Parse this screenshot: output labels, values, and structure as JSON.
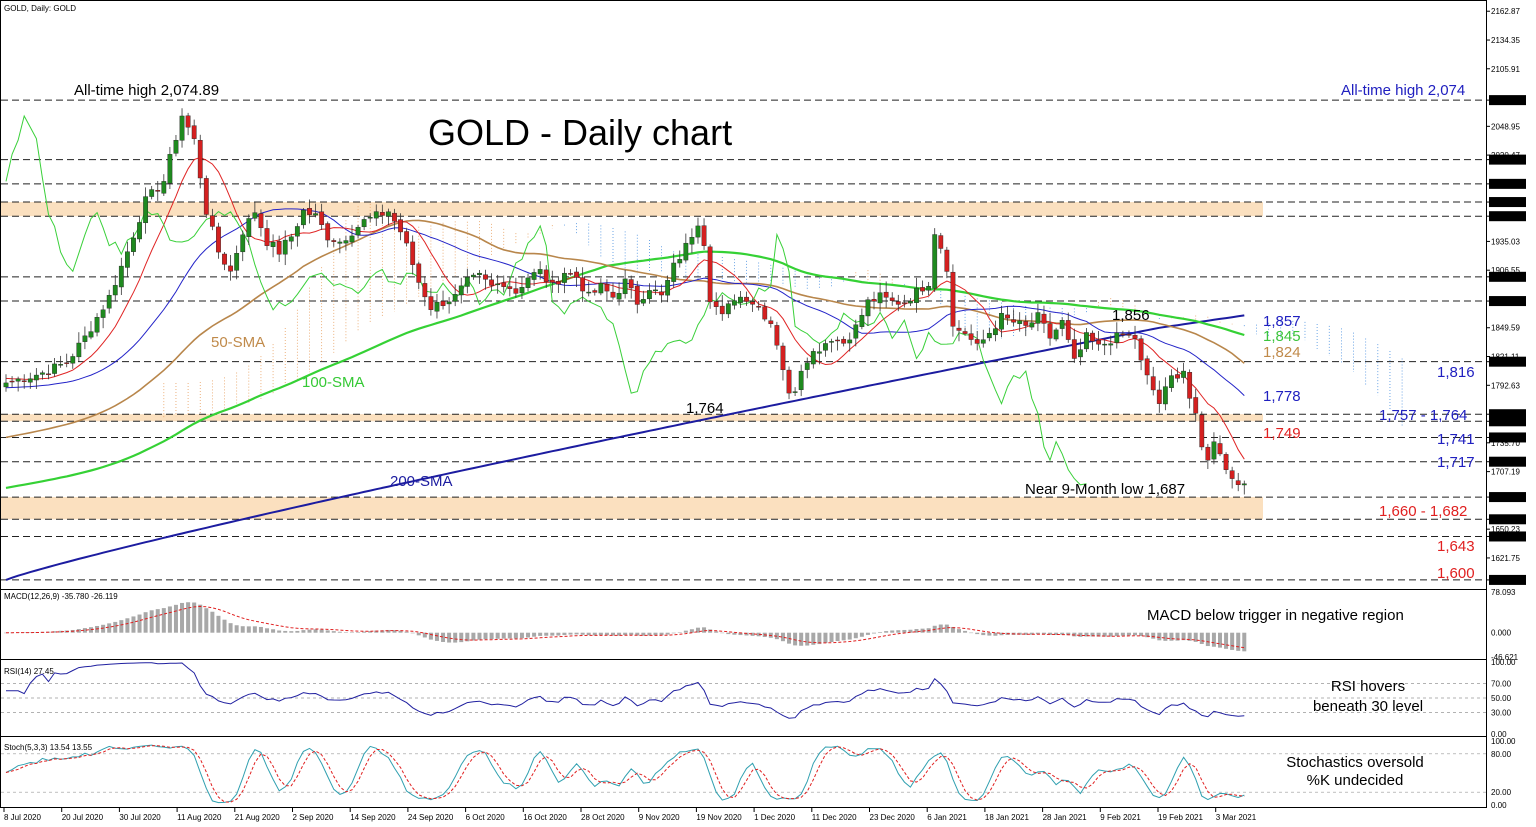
{
  "header": {
    "symbol_line": "GOLD, Daily: GOLD",
    "chart_title": "GOLD - Daily chart"
  },
  "colors": {
    "up_candle": "#1f8a1f",
    "down_candle": "#d42020",
    "sma50": "#b8864b",
    "sma100": "#35d135",
    "sma200": "#1c1ca0",
    "kijun": "#2323c8",
    "tenkan": "#e02424",
    "chikou": "#3ad03a",
    "zone_fill": "#fbe0bf",
    "blue_label": "#2020c0",
    "red_label": "#e02020",
    "green_label": "#3cc43c",
    "brown_label": "#c08a4a"
  },
  "chart_data": [
    {
      "type": "line",
      "name": "price-panel",
      "title": "GOLD - Daily chart",
      "ylim": [
        1592,
        2172
      ],
      "y_ticks": [
        2162.87,
        2134.35,
        2105.91,
        2074.89,
        2048.95,
        2020.47,
        2016.0,
        1992.0,
        1974.0,
        1960.0,
        1935.03,
        1906.55,
        1900.0,
        1876.0,
        1849.59,
        1821.11,
        1816.0,
        1792.63,
        1764.0,
        1757.0,
        1741.0,
        1735.7,
        1717.0,
        1707.19,
        1682.0,
        1660.0,
        1650.23,
        1643.0,
        1621.75,
        1600.0
      ],
      "y_tick_labels": [
        "2162.87",
        "2134.35",
        "2105.91",
        "2074.89",
        "2048.95",
        "2020.47",
        "2016.00",
        "1992.00",
        "1974.00",
        "1960.00",
        "1935.03",
        "1906.55",
        "1900.00",
        "1876.00",
        "1849.59",
        "1821.11",
        "1816.00",
        "1792.63",
        "1764.00",
        "1757.00",
        "1741.00",
        "1735.70",
        "1717.00",
        "1707.19",
        "1682.00",
        "1660.00",
        "1650.23",
        "1643.00",
        "1621.75",
        "1600.00"
      ],
      "highlighted_ticks": [
        "2074.89",
        "2016.00",
        "1992.00",
        "1974.00",
        "1960.00",
        "1900.00",
        "1876.00",
        "1816.00",
        "1764.00",
        "1757.00",
        "1741.00",
        "1717.00",
        "1682.00",
        "1660.00",
        "1643.00",
        "1600.00"
      ],
      "x_tick_labels": [
        "8 Jul 2020",
        "20 Jul 2020",
        "30 Jul 2020",
        "11 Aug 2020",
        "21 Aug 2020",
        "2 Sep 2020",
        "14 Sep 2020",
        "24 Sep 2020",
        "6 Oct 2020",
        "16 Oct 2020",
        "28 Oct 2020",
        "9 Nov 2020",
        "19 Nov 2020",
        "1 Dec 2020",
        "11 Dec 2020",
        "23 Dec 2020",
        "6 Jan 2021",
        "18 Jan 2021",
        "28 Jan 2021",
        "9 Feb 2021",
        "19 Feb 2021",
        "3 Mar 2021"
      ],
      "horizontal_levels": [
        2074.89,
        2016,
        1992,
        1974,
        1960,
        1900,
        1876,
        1816,
        1764,
        1757,
        1741,
        1717,
        1682,
        1660,
        1643,
        1600
      ],
      "zones": [
        [
          1960,
          1974
        ],
        [
          1757,
          1764
        ],
        [
          1660,
          1682
        ]
      ],
      "close_anchors": [
        [
          0,
          1795
        ],
        [
          6,
          1805
        ],
        [
          10,
          1815
        ],
        [
          13,
          1840
        ],
        [
          17,
          1880
        ],
        [
          20,
          1925
        ],
        [
          23,
          1975
        ],
        [
          26,
          1995
        ],
        [
          29,
          2060
        ],
        [
          31,
          2035
        ],
        [
          33,
          1965
        ],
        [
          35,
          1925
        ],
        [
          37,
          1905
        ],
        [
          39,
          1945
        ],
        [
          41,
          1965
        ],
        [
          43,
          1935
        ],
        [
          45,
          1925
        ],
        [
          47,
          1940
        ],
        [
          49,
          1965
        ],
        [
          51,
          1960
        ],
        [
          53,
          1940
        ],
        [
          55,
          1935
        ],
        [
          57,
          1945
        ],
        [
          59,
          1955
        ],
        [
          61,
          1960
        ],
        [
          63,
          1965
        ],
        [
          64,
          1955
        ],
        [
          65,
          1945
        ],
        [
          66,
          1930
        ],
        [
          68,
          1895
        ],
        [
          70,
          1870
        ],
        [
          72,
          1875
        ],
        [
          74,
          1880
        ],
        [
          76,
          1895
        ],
        [
          78,
          1900
        ],
        [
          80,
          1890
        ],
        [
          82,
          1895
        ],
        [
          84,
          1885
        ],
        [
          86,
          1900
        ],
        [
          88,
          1905
        ],
        [
          90,
          1890
        ],
        [
          92,
          1905
        ],
        [
          94,
          1900
        ],
        [
          96,
          1880
        ],
        [
          98,
          1890
        ],
        [
          100,
          1880
        ],
        [
          102,
          1895
        ],
        [
          104,
          1875
        ],
        [
          106,
          1890
        ],
        [
          108,
          1880
        ],
        [
          110,
          1910
        ],
        [
          112,
          1930
        ],
        [
          114,
          1955
        ],
        [
          115,
          1935
        ],
        [
          116,
          1880
        ],
        [
          118,
          1860
        ],
        [
          120,
          1880
        ],
        [
          122,
          1880
        ],
        [
          124,
          1870
        ],
        [
          126,
          1855
        ],
        [
          127,
          1835
        ],
        [
          128,
          1810
        ],
        [
          129,
          1782
        ],
        [
          130,
          1790
        ],
        [
          131,
          1810
        ],
        [
          132,
          1820
        ],
        [
          134,
          1830
        ],
        [
          136,
          1840
        ],
        [
          138,
          1835
        ],
        [
          140,
          1850
        ],
        [
          142,
          1875
        ],
        [
          144,
          1880
        ],
        [
          146,
          1875
        ],
        [
          148,
          1875
        ],
        [
          150,
          1885
        ],
        [
          152,
          1895
        ],
        [
          153,
          1945
        ],
        [
          154,
          1930
        ],
        [
          155,
          1910
        ],
        [
          156,
          1850
        ],
        [
          158,
          1845
        ],
        [
          160,
          1830
        ],
        [
          162,
          1845
        ],
        [
          164,
          1860
        ],
        [
          166,
          1855
        ],
        [
          168,
          1850
        ],
        [
          170,
          1860
        ],
        [
          172,
          1840
        ],
        [
          174,
          1855
        ],
        [
          176,
          1815
        ],
        [
          178,
          1840
        ],
        [
          180,
          1830
        ],
        [
          182,
          1838
        ],
        [
          184,
          1842
        ],
        [
          186,
          1840
        ],
        [
          187,
          1815
        ],
        [
          188,
          1800
        ],
        [
          189,
          1788
        ],
        [
          190,
          1775
        ],
        [
          192,
          1800
        ],
        [
          194,
          1808
        ],
        [
          195,
          1780
        ],
        [
          196,
          1760
        ],
        [
          197,
          1730
        ],
        [
          198,
          1722
        ],
        [
          199,
          1735
        ],
        [
          200,
          1728
        ],
        [
          201,
          1712
        ],
        [
          202,
          1700
        ],
        [
          203,
          1696
        ],
        [
          204,
          1700
        ]
      ],
      "annotations": {
        "ath_left": "All-time high 2,074.89",
        "ath_right": "All-time high 2,074",
        "low_1764": "1,764",
        "high_1856": "1,856",
        "nine_month_low": "Near 9-Month low 1,687",
        "sma50_label": "50-SMA",
        "sma100_label": "100-SMA",
        "sma200_label": "200-SMA"
      },
      "right_labels": [
        {
          "text": "1,857",
          "color": "blue"
        },
        {
          "text": "1,845",
          "color": "green"
        },
        {
          "text": "1,824",
          "color": "brown"
        },
        {
          "text": "1,816",
          "color": "blue"
        },
        {
          "text": "1,778",
          "color": "blue"
        },
        {
          "text": "1,757 - 1,764",
          "color": "blue"
        },
        {
          "text": "1,749",
          "color": "red"
        },
        {
          "text": "1,741",
          "color": "blue"
        },
        {
          "text": "1,717",
          "color": "blue"
        },
        {
          "text": "1,660 - 1,682",
          "color": "red"
        },
        {
          "text": "1,643",
          "color": "red"
        },
        {
          "text": "1,600",
          "color": "red"
        }
      ]
    },
    {
      "type": "bar",
      "name": "macd-panel",
      "title": "MACD(12,26,9) -35.780 -26.119",
      "ylim": [
        -46.621,
        78.093
      ],
      "y_tick_labels": [
        "78.093",
        "0.000",
        "-46.621"
      ],
      "annotation": "MACD below trigger in negative region"
    },
    {
      "type": "line",
      "name": "rsi-panel",
      "title": "RSI(14) 27.45",
      "ylim": [
        0,
        100
      ],
      "y_tick_labels": [
        "100.00",
        "70.00",
        "50.00",
        "30.00",
        "0.00"
      ],
      "annotation_line1": "RSI hovers",
      "annotation_line2": "beneath 30 level"
    },
    {
      "type": "line",
      "name": "stoch-panel",
      "title": "Stoch(5,3,3) 13.54 13.55",
      "ylim": [
        0,
        100
      ],
      "y_tick_labels": [
        "100.00",
        "80.00",
        "20.00",
        "0.00"
      ],
      "annotation_line1": "Stochastics oversold",
      "annotation_line2": "%K undecided"
    }
  ]
}
